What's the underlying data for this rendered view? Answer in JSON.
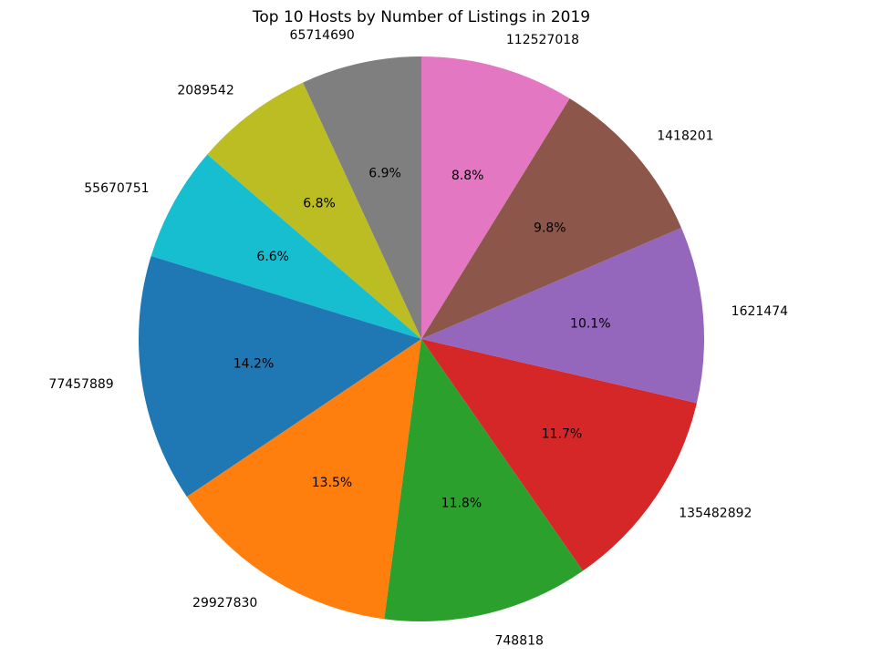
{
  "chart_data": {
    "type": "pie",
    "title": "Top 10 Hosts by Number of Listings in 2019",
    "start_angle_deg": 90,
    "direction": "counterclockwise",
    "slices": [
      {
        "label": "65714690",
        "percent": 6.9,
        "pct_label": "6.9%",
        "color": "#7f7f7f"
      },
      {
        "label": "2089542",
        "percent": 6.8,
        "pct_label": "6.8%",
        "color": "#bcbd22"
      },
      {
        "label": "55670751",
        "percent": 6.6,
        "pct_label": "6.6%",
        "color": "#17becf"
      },
      {
        "label": "77457889",
        "percent": 14.2,
        "pct_label": "14.2%",
        "color": "#1f77b4"
      },
      {
        "label": "29927830",
        "percent": 13.5,
        "pct_label": "13.5%",
        "color": "#ff7f0e"
      },
      {
        "label": "748818",
        "percent": 11.8,
        "pct_label": "11.8%",
        "color": "#2ca02c"
      },
      {
        "label": "135482892",
        "percent": 11.7,
        "pct_label": "11.7%",
        "color": "#d62728"
      },
      {
        "label": "1621474",
        "percent": 10.1,
        "pct_label": "10.1%",
        "color": "#9467bd"
      },
      {
        "label": "1418201",
        "percent": 9.8,
        "pct_label": "9.8%",
        "color": "#8c564b"
      },
      {
        "label": "112527018",
        "percent": 8.8,
        "pct_label": "8.8%",
        "color": "#e377c2"
      }
    ]
  }
}
